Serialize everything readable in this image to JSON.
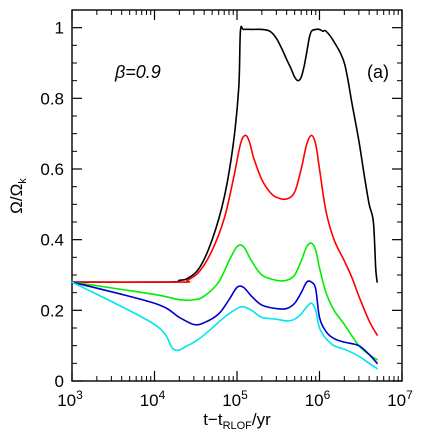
{
  "chart_data": {
    "type": "line",
    "x_scale": "log",
    "xlim": [
      1000,
      10000000
    ],
    "ylim": [
      0,
      1.05
    ],
    "grid": false,
    "x_ticks": [
      {
        "value": 1000,
        "base": "10",
        "exp": "3"
      },
      {
        "value": 10000,
        "base": "10",
        "exp": "4"
      },
      {
        "value": 100000,
        "base": "10",
        "exp": "5"
      },
      {
        "value": 1000000,
        "base": "10",
        "exp": "6"
      },
      {
        "value": 10000000,
        "base": "10",
        "exp": "7"
      }
    ],
    "y_ticks": [
      {
        "value": 0,
        "label": "0"
      },
      {
        "value": 0.2,
        "label": "0.2"
      },
      {
        "value": 0.4,
        "label": "0.4"
      },
      {
        "value": 0.6,
        "label": "0.6"
      },
      {
        "value": 0.8,
        "label": "0.8"
      },
      {
        "value": 1,
        "label": "1"
      }
    ],
    "xlabel": {
      "main": "t−t",
      "sub": "RLOF",
      "tail": "/yr"
    },
    "ylabel": {
      "main": "Ω/Ω",
      "sub": "k"
    },
    "annotations": {
      "beta": "β=0.9",
      "panel": "(a)"
    },
    "series": [
      {
        "color": "#000000",
        "x": [
          1000,
          15000,
          20000,
          25000,
          35000,
          50000,
          70000,
          90000,
          105000,
          110000,
          120000,
          150000,
          200000,
          250000,
          300000,
          350000,
          400000,
          450000,
          500000,
          550000,
          600000,
          650000,
          700000,
          750000,
          800000,
          900000,
          1000000,
          1100000,
          1200000,
          1500000,
          2000000,
          2500000,
          3000000,
          3500000,
          4000000,
          4500000,
          4800000,
          5000000
        ],
        "y": [
          0.28,
          0.28,
          0.285,
          0.29,
          0.32,
          0.4,
          0.52,
          0.67,
          0.83,
          0.99,
          0.995,
          0.995,
          0.995,
          0.99,
          0.97,
          0.94,
          0.91,
          0.885,
          0.86,
          0.85,
          0.86,
          0.89,
          0.93,
          0.97,
          0.99,
          0.995,
          0.995,
          0.99,
          0.99,
          0.96,
          0.9,
          0.78,
          0.68,
          0.58,
          0.5,
          0.45,
          0.32,
          0.28
        ]
      },
      {
        "color": "#ff0000",
        "x": [
          1000,
          20000,
          25000,
          35000,
          50000,
          70000,
          90000,
          110000,
          125000,
          140000,
          160000,
          200000,
          250000,
          300000,
          400000,
          500000,
          600000,
          700000,
          800000,
          900000,
          1000000,
          1200000,
          1500000,
          2000000,
          2500000,
          3000000,
          4000000,
          5000000
        ],
        "y": [
          0.28,
          0.28,
          0.285,
          0.31,
          0.37,
          0.46,
          0.57,
          0.67,
          0.695,
          0.68,
          0.63,
          0.57,
          0.535,
          0.52,
          0.515,
          0.535,
          0.6,
          0.67,
          0.695,
          0.67,
          0.6,
          0.48,
          0.4,
          0.34,
          0.29,
          0.24,
          0.17,
          0.13
        ]
      },
      {
        "color": "#00ee00",
        "x": [
          1000,
          10000,
          20000,
          30000,
          40000,
          60000,
          80000,
          100000,
          120000,
          150000,
          200000,
          300000,
          400000,
          500000,
          600000,
          700000,
          800000,
          900000,
          1000000,
          1200000,
          1500000,
          2000000,
          3000000,
          4000000,
          5000000
        ],
        "y": [
          0.28,
          0.245,
          0.23,
          0.23,
          0.24,
          0.28,
          0.34,
          0.38,
          0.38,
          0.34,
          0.3,
          0.285,
          0.285,
          0.3,
          0.34,
          0.38,
          0.39,
          0.37,
          0.32,
          0.25,
          0.2,
          0.16,
          0.1,
          0.075,
          0.06
        ]
      },
      {
        "color": "#0000cc",
        "x": [
          1000,
          10000,
          20000,
          30000,
          40000,
          60000,
          80000,
          100000,
          120000,
          150000,
          200000,
          300000,
          400000,
          500000,
          600000,
          700000,
          800000,
          900000,
          1000000,
          1200000,
          1500000,
          2000000,
          3000000,
          4000000,
          5000000
        ],
        "y": [
          0.28,
          0.22,
          0.18,
          0.16,
          0.165,
          0.19,
          0.23,
          0.265,
          0.265,
          0.24,
          0.215,
          0.205,
          0.205,
          0.22,
          0.25,
          0.28,
          0.28,
          0.26,
          0.18,
          0.14,
          0.12,
          0.11,
          0.1,
          0.075,
          0.05
        ]
      },
      {
        "color": "#00e5ee",
        "x": [
          1000,
          10000,
          17000,
          25000,
          35000,
          50000,
          70000,
          100000,
          120000,
          150000,
          200000,
          300000,
          400000,
          500000,
          600000,
          700000,
          800000,
          900000,
          1000000,
          1200000,
          1500000,
          2000000,
          3000000,
          4000000,
          5000000
        ],
        "y": [
          0.28,
          0.16,
          0.09,
          0.1,
          0.12,
          0.15,
          0.18,
          0.205,
          0.21,
          0.2,
          0.18,
          0.175,
          0.17,
          0.175,
          0.19,
          0.21,
          0.22,
          0.2,
          0.15,
          0.12,
          0.1,
          0.09,
          0.07,
          0.05,
          0.035
        ]
      }
    ]
  }
}
